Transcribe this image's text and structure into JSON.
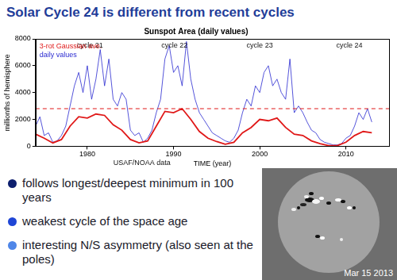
{
  "title": "Solar Cycle 24 is different from recent cycles",
  "chart_data": {
    "type": "line",
    "title": "Sunspot Area (daily values)",
    "x_label": "TIME (year)",
    "y_label": "millionths of hemisphere",
    "source": "USAF/NOAA data",
    "series": [
      {
        "name": "daily values",
        "color": "#2a2ad0",
        "x": [
          1974,
          1974.5,
          1975,
          1975.5,
          1976,
          1976.5,
          1977,
          1977.5,
          1978,
          1978.5,
          1979,
          1979.5,
          1980,
          1980.5,
          1981,
          1981.5,
          1982,
          1982.5,
          1983,
          1983.5,
          1984,
          1984.5,
          1985,
          1985.5,
          1986,
          1986.5,
          1987,
          1987.5,
          1988,
          1988.5,
          1989,
          1989.5,
          1990,
          1990.5,
          1991,
          1991.5,
          1992,
          1992.5,
          1993,
          1993.5,
          1994,
          1994.5,
          1995,
          1995.5,
          1996,
          1996.5,
          1997,
          1997.5,
          1998,
          1998.5,
          1999,
          1999.5,
          2000,
          2000.5,
          2001,
          2001.5,
          2002,
          2002.5,
          2003,
          2003.5,
          2004,
          2004.5,
          2005,
          2005.5,
          2006,
          2006.5,
          2007,
          2007.5,
          2008,
          2008.5,
          2009,
          2009.5,
          2010,
          2010.5,
          2011,
          2011.5,
          2012,
          2012.5,
          2013
        ],
        "values": [
          1500,
          2200,
          800,
          1000,
          300,
          400,
          800,
          1500,
          3000,
          4500,
          5500,
          4000,
          6000,
          3500,
          5000,
          7200,
          4500,
          6500,
          3500,
          3000,
          4000,
          3500,
          1200,
          800,
          1000,
          300,
          600,
          1200,
          2500,
          3500,
          6500,
          7500,
          5500,
          6000,
          4500,
          7800,
          5000,
          3500,
          2500,
          2000,
          1500,
          1000,
          800,
          600,
          400,
          300,
          600,
          1200,
          2500,
          3500,
          3000,
          4500,
          4000,
          5500,
          6000,
          4500,
          5000,
          4000,
          3500,
          6500,
          2500,
          3000,
          2500,
          1800,
          1200,
          1000,
          500,
          300,
          200,
          100,
          100,
          200,
          600,
          800,
          1500,
          2500,
          2000,
          2800,
          1800
        ]
      },
      {
        "name": "3-rot Gaussian ave.",
        "color": "#e01818",
        "x": [
          1974,
          1975,
          1976,
          1977,
          1978,
          1979,
          1980,
          1981,
          1982,
          1983,
          1984,
          1985,
          1986,
          1987,
          1988,
          1989,
          1990,
          1991,
          1992,
          1993,
          1994,
          1995,
          1996,
          1997,
          1998,
          1999,
          2000,
          2001,
          2002,
          2003,
          2004,
          2005,
          2006,
          2007,
          2008,
          2009,
          2010,
          2011,
          2012,
          2013
        ],
        "values": [
          900,
          600,
          250,
          500,
          1500,
          2200,
          2100,
          2400,
          2300,
          1600,
          1200,
          500,
          250,
          400,
          1500,
          2600,
          2500,
          2800,
          2000,
          1100,
          600,
          350,
          150,
          300,
          1000,
          1400,
          2000,
          1900,
          2100,
          1400,
          900,
          800,
          400,
          200,
          50,
          50,
          300,
          800,
          1100,
          1000
        ]
      }
    ],
    "threshold": 2800,
    "annotations": [
      {
        "text": "cycle 21",
        "x": 1980.3,
        "y": 7500
      },
      {
        "text": "cycle 22",
        "x": 1990.1,
        "y": 7500
      },
      {
        "text": "cycle 23",
        "x": 2000.0,
        "y": 7500
      },
      {
        "text": "cycle 24",
        "x": 2010.4,
        "y": 7500
      }
    ],
    "xlim": [
      1974,
      2015
    ],
    "xticks": [
      1980,
      1990,
      2000,
      2010
    ],
    "ylim": [
      0,
      8000
    ],
    "yticks": [
      0,
      2000,
      4000,
      6000,
      8000
    ],
    "grid": false,
    "legend": "upper left"
  },
  "bullets": [
    "follows longest/deepest minimum in 100 years",
    "weakest cycle of the space age",
    "interesting N/S asymmetry (also seen at the poles)"
  ],
  "image": {
    "caption": "Mar 15 2013"
  }
}
